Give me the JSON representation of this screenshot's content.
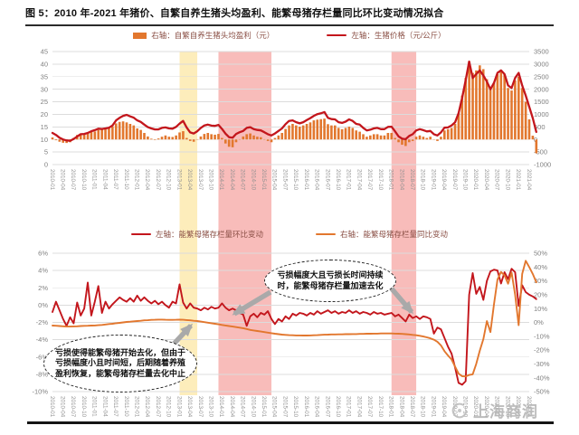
{
  "title": "图 5：2010 年-2021 年猪价、自繁自养生猪头均盈利、能繁母猪存栏量同比环比变动情况拟合",
  "watermark": {
    "text": "上海商润"
  },
  "colors": {
    "red": "#c3161c",
    "orange": "#e2772e",
    "band_pink": "#f8bcba",
    "band_yellow": "#fdedbb",
    "grid": "#dcdcdc",
    "axis_text": "#808080",
    "xlabel_text": "#8f8f8f",
    "legend_text": "#8a4f45",
    "arrow_gray": "#a9a9a9"
  },
  "months_start": "2010-01",
  "x_labels": [
    "2010-01",
    "2010-04",
    "2010-07",
    "2010-10",
    "2011-01",
    "2011-04",
    "2011-07",
    "2011-10",
    "2012-01",
    "2012-04",
    "2012-07",
    "2012-10",
    "2013-01",
    "2013-04",
    "2013-07",
    "2013-10",
    "2014-01",
    "2014-04",
    "2014-07",
    "2014-10",
    "2015-01",
    "2015-04",
    "2015-07",
    "2015-10",
    "2016-01",
    "2016-04",
    "2016-07",
    "2016-10",
    "2017-01",
    "2017-04",
    "2017-07",
    "2017-10",
    "2018-01",
    "2018-04",
    "2018-07",
    "2018-10",
    "2019-01",
    "2019-04",
    "2019-07",
    "2019-10",
    "2020-01",
    "2020-04",
    "2020-07",
    "2020-10",
    "2021-01",
    "2021-04"
  ],
  "bands": [
    {
      "start": "2013-01",
      "end": "2013-06",
      "color_key": "band_yellow"
    },
    {
      "start": "2013-12",
      "end": "2015-03",
      "color_key": "band_pink"
    },
    {
      "start": "2018-01",
      "end": "2018-08",
      "color_key": "band_pink"
    }
  ],
  "legend_top": [
    {
      "marker": "bar",
      "color_key": "orange",
      "label": "右轴：自繁自养生猪头均盈利（元）"
    },
    {
      "marker": "line",
      "color_key": "red",
      "label": "左轴：生猪价格（元/公斤）"
    }
  ],
  "legend_bottom": [
    {
      "marker": "line",
      "color_key": "red",
      "label": "左轴：能繁母猪存栏量环比变动"
    },
    {
      "marker": "line",
      "color_key": "orange",
      "label": "右轴：能繁母猪存栏量同比变动"
    }
  ],
  "annotations": [
    {
      "id": "left",
      "text": "亏损使得能繁母猪开始去化，但由于亏损幅度小且时间短，后期随着养殖盈利恢复，能繁母猪存栏量去化中止"
    },
    {
      "id": "right",
      "text": "亏损幅度大且亏损长时间持续时，能繁母猪存栏量加速去化"
    }
  ],
  "chart_data": [
    {
      "id": "top",
      "type": "bar+line",
      "title": "猪价与自繁自养生猪头均盈利",
      "left_axis": {
        "label": "生猪价格（元/公斤）",
        "min": 0,
        "max": 45,
        "ticks": [
          "45",
          "40",
          "35",
          "30",
          "25",
          "20",
          "15",
          "10",
          "5",
          "0"
        ]
      },
      "right_axis": {
        "label": "自繁自养生猪头均盈利（元）",
        "min": -1000,
        "max": 3500,
        "ticks": [
          "3500",
          "3000",
          "2500",
          "2000",
          "1500",
          "1000",
          "500",
          "0",
          "-500",
          "-1000"
        ]
      },
      "series": [
        {
          "name": "自繁自养生猪头均盈利",
          "type": "bar",
          "axis": "right",
          "color_key": "orange",
          "values": [
            80,
            -30,
            -90,
            -130,
            -140,
            -110,
            60,
            180,
            240,
            220,
            260,
            300,
            320,
            380,
            400,
            420,
            450,
            520,
            640,
            700,
            720,
            680,
            620,
            560,
            440,
            380,
            260,
            120,
            30,
            -20,
            40,
            110,
            160,
            110,
            100,
            160,
            280,
            330,
            60,
            -60,
            -90,
            10,
            120,
            220,
            260,
            210,
            190,
            220,
            60,
            -160,
            -290,
            -310,
            -110,
            10,
            120,
            210,
            240,
            160,
            110,
            90,
            10,
            -60,
            -110,
            60,
            160,
            260,
            420,
            560,
            620,
            560,
            510,
            560,
            620,
            680,
            760,
            790,
            810,
            830,
            610,
            560,
            560,
            460,
            410,
            460,
            510,
            460,
            360,
            310,
            210,
            110,
            160,
            210,
            210,
            160,
            160,
            260,
            260,
            60,
            -110,
            -210,
            -260,
            -110,
            -60,
            110,
            160,
            110,
            60,
            110,
            10,
            -60,
            110,
            360,
            410,
            460,
            620,
            1050,
            1750,
            2450,
            3100,
            2650,
            2750,
            2950,
            2800,
            2400,
            2050,
            2250,
            2600,
            2700,
            2600,
            2050,
            1950,
            2350,
            2500,
            2050,
            1500,
            800,
            150,
            -550
          ]
        },
        {
          "name": "生猪价格",
          "type": "line",
          "axis": "left",
          "color_key": "red",
          "values": [
            12.6,
            11.8,
            10.7,
            10.0,
            9.6,
            9.5,
            10.2,
            11.2,
            12.1,
            12.2,
            12.6,
            13.3,
            13.7,
            14.3,
            14.2,
            14.4,
            14.7,
            15.6,
            17.6,
            18.6,
            19.4,
            19.8,
            19.2,
            18.7,
            17.6,
            17.0,
            15.9,
            14.9,
            14.4,
            14.0,
            14.0,
            14.6,
            14.8,
            14.4,
            14.3,
            15.0,
            16.3,
            17.4,
            14.8,
            12.8,
            12.4,
            13.3,
            14.6,
            15.6,
            15.9,
            15.5,
            15.4,
            15.8,
            14.2,
            12.3,
            10.9,
            10.7,
            12.2,
            12.9,
            13.4,
            14.6,
            14.9,
            14.1,
            13.8,
            13.6,
            12.9,
            12.1,
            11.6,
            12.4,
            13.4,
            14.4,
            16.1,
            17.4,
            17.6,
            16.9,
            16.4,
            16.9,
            17.7,
            18.5,
            19.4,
            20.1,
            20.4,
            20.9,
            18.6,
            18.1,
            18.0,
            16.9,
            16.6,
            17.1,
            18.0,
            17.4,
            16.2,
            15.9,
            14.6,
            13.6,
            13.9,
            14.4,
            14.6,
            14.1,
            14.1,
            15.0,
            15.1,
            13.2,
            11.2,
            10.3,
            10.1,
            11.4,
            12.1,
            13.6,
            14.1,
            13.7,
            13.2,
            13.4,
            12.1,
            11.6,
            12.8,
            14.7,
            14.8,
            15.6,
            16.8,
            20.5,
            26.5,
            33.5,
            41.0,
            34.5,
            36.0,
            37.5,
            35.5,
            33.0,
            30.0,
            32.5,
            36.5,
            37.5,
            36.0,
            31.5,
            30.5,
            34.5,
            36.5,
            31.5,
            27.5,
            23.0,
            18.5,
            13.0
          ]
        }
      ]
    },
    {
      "id": "bottom",
      "type": "line",
      "title": "能繁母猪存栏量环比与同比变动",
      "left_axis": {
        "label": "能繁母猪存栏量环比变动",
        "min": -10,
        "max": 6,
        "ticks": [
          "6%",
          "4%",
          "2%",
          "0%",
          "-2%",
          "-4%",
          "-6%",
          "-8%",
          "-10%"
        ]
      },
      "right_axis": {
        "label": "能繁母猪存栏量同比变动",
        "min": -50,
        "max": 50,
        "ticks": [
          "50%",
          "40%",
          "30%",
          "20%",
          "10%",
          "0%",
          "-10%",
          "-20%",
          "-30%",
          "-40%",
          "-50%"
        ]
      },
      "series": [
        {
          "name": "能繁母猪存栏量环比变动",
          "type": "line",
          "axis": "left",
          "color_key": "red",
          "values": [
            -0.8,
            0.4,
            -0.6,
            -1.6,
            -2.4,
            -1.4,
            -2.1,
            0.3,
            -1.2,
            -0.4,
            2.6,
            -1.2,
            0.4,
            2.2,
            -0.9,
            0.4,
            -0.4,
            0.1,
            0.5,
            0.9,
            0.6,
            0.4,
            0.8,
            0.4,
            1.1,
            0.5,
            0.9,
            0.5,
            0.2,
            0.5,
            0.1,
            0.4,
            0.0,
            -0.3,
            0.4,
            0.2,
            2.4,
            0.3,
            -0.4,
            0.2,
            -0.3,
            -0.4,
            -0.6,
            -0.3,
            -0.5,
            -0.2,
            -0.4,
            -0.3,
            0.2,
            -0.3,
            -0.6,
            -0.4,
            -0.6,
            -0.9,
            -1.1,
            -2.4,
            -1.3,
            -1.0,
            -1.4,
            -0.9,
            -1.1,
            -0.7,
            -1.6,
            -2.2,
            -1.6,
            -1.9,
            -1.3,
            -1.6,
            -1.0,
            -1.2,
            -0.9,
            -1.0,
            -1.2,
            -0.9,
            -1.1,
            -0.7,
            -1.0,
            -0.8,
            -0.6,
            -0.9,
            -0.7,
            -1.0,
            -0.8,
            -0.9,
            -0.6,
            -0.9,
            -0.7,
            -1.0,
            -0.8,
            -0.9,
            -1.1,
            -0.8,
            -1.0,
            -0.9,
            -1.1,
            -1.0,
            -0.9,
            -1.3,
            -1.1,
            -1.5,
            -1.9,
            -1.1,
            -1.5,
            -1.3,
            -1.6,
            -1.3,
            -1.4,
            -1.6,
            -3.3,
            -2.6,
            -2.8,
            -3.8,
            -4.8,
            -5.6,
            -7.2,
            -9.0,
            -9.2,
            -8.8,
            1.2,
            3.7,
            1.3,
            2.1,
            0.6,
            2.8,
            3.9,
            4.1,
            4.0,
            2.5,
            3.8,
            3.0,
            4.2,
            3.8,
            -0.1,
            2.3,
            1.5,
            1.2,
            1.0,
            0.7
          ]
        },
        {
          "name": "能繁母猪存栏量同比变动",
          "type": "line",
          "axis": "right",
          "color_key": "orange",
          "values": [
            -2.3,
            -2.4,
            -2.6,
            -2.8,
            -3.0,
            -3.0,
            -2.9,
            -2.8,
            -2.6,
            -2.5,
            -2.4,
            -2.3,
            -2.2,
            -2.0,
            -1.8,
            -1.5,
            -1.2,
            -1.0,
            -0.6,
            -0.3,
            0.0,
            0.3,
            0.5,
            0.8,
            1.0,
            1.2,
            1.5,
            1.6,
            1.8,
            1.9,
            2.0,
            2.0,
            1.9,
            1.8,
            1.8,
            1.9,
            2.0,
            1.9,
            1.7,
            1.5,
            1.2,
            1.0,
            0.6,
            0.2,
            -0.2,
            -0.6,
            -1.0,
            -1.4,
            -1.8,
            -2.2,
            -2.6,
            -3.0,
            -3.4,
            -3.8,
            -4.2,
            -4.8,
            -5.4,
            -5.8,
            -6.2,
            -6.6,
            -7.0,
            -7.4,
            -7.8,
            -8.2,
            -8.5,
            -8.8,
            -9.0,
            -9.2,
            -9.3,
            -9.4,
            -9.4,
            -9.5,
            -9.5,
            -9.4,
            -9.3,
            -9.2,
            -9.0,
            -8.9,
            -8.8,
            -8.7,
            -8.7,
            -8.6,
            -8.6,
            -8.5,
            -8.5,
            -8.4,
            -8.4,
            -8.3,
            -8.3,
            -8.2,
            -8.2,
            -8.1,
            -8.1,
            -8.0,
            -8.0,
            -8.0,
            -8.0,
            -8.1,
            -8.2,
            -8.3,
            -8.5,
            -8.7,
            -9.0,
            -9.3,
            -9.7,
            -10.2,
            -10.8,
            -11.5,
            -12.5,
            -14.0,
            -16.6,
            -20.8,
            -23.9,
            -26.7,
            -31.9,
            -37.0,
            -38.9,
            -39.0,
            -38.0,
            -37.5,
            -30.0,
            -20.5,
            -12.0,
            1.0,
            -7.0,
            13.0,
            31.0,
            36.5,
            34.0,
            28.0,
            36.0,
            20.0,
            -2.0,
            35.0,
            44.5,
            40.0,
            35.0,
            29.0
          ]
        }
      ]
    }
  ]
}
